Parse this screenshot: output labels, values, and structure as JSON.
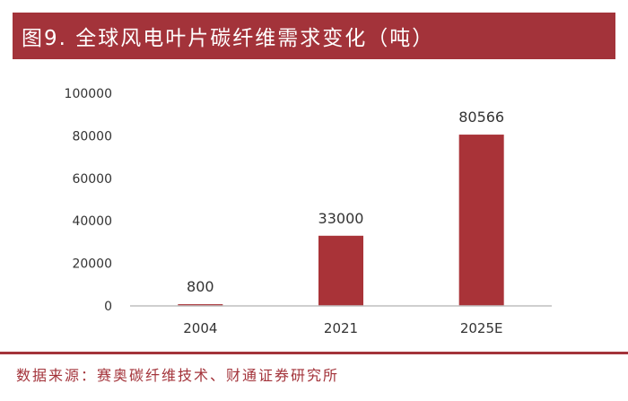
{
  "header": {
    "title": "图9. 全球风电叶片碳纤维需求变化（吨）"
  },
  "footer": {
    "source": "数据来源：赛奥碳纤维技术、财通证券研究所"
  },
  "colors": {
    "brand": "#a3333a",
    "bar": "#a93338",
    "axis": "#bfbfbf",
    "text": "#333333"
  },
  "chart_data": {
    "type": "bar",
    "categories": [
      "2004",
      "2021",
      "2025E"
    ],
    "values": [
      800,
      33000,
      80566
    ],
    "data_labels": [
      "800",
      "33000",
      "80566"
    ],
    "yticks": [
      0,
      20000,
      40000,
      60000,
      80000,
      100000
    ],
    "ylim": [
      0,
      100000
    ],
    "grid": false,
    "legend": "none"
  }
}
